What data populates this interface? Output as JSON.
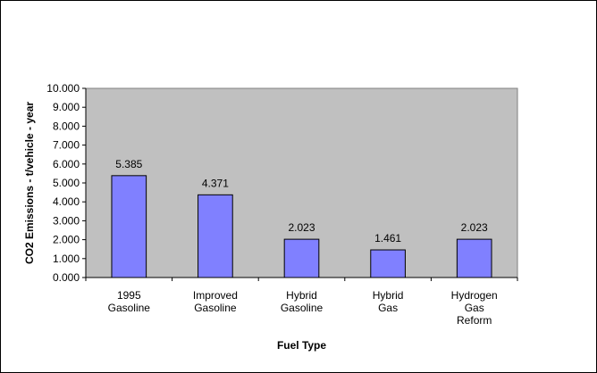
{
  "chart_data": {
    "type": "bar",
    "categories": [
      [
        "1995",
        "Gasoline"
      ],
      [
        "Improved",
        "Gasoline"
      ],
      [
        "Hybrid",
        "Gasoline"
      ],
      [
        "Hybrid",
        "Gas"
      ],
      [
        "Hydrogen",
        "Gas",
        "Reform"
      ]
    ],
    "values": [
      5.385,
      4.371,
      2.023,
      1.461,
      2.023
    ],
    "value_labels": [
      "5.385",
      "4.371",
      "2.023",
      "1.461",
      "2.023"
    ],
    "xlabel": "Fuel Type",
    "ylabel": "CO2 Emissions - t/vehicle - year",
    "ylim": [
      0,
      10
    ],
    "yticks": [
      "0.000",
      "1.000",
      "2.000",
      "3.000",
      "4.000",
      "5.000",
      "6.000",
      "7.000",
      "8.000",
      "9.000",
      "10.000"
    ],
    "grid": false,
    "legend": "none",
    "colors": {
      "bar": "#8080ff",
      "plot_background": "#c0c0c0"
    }
  }
}
